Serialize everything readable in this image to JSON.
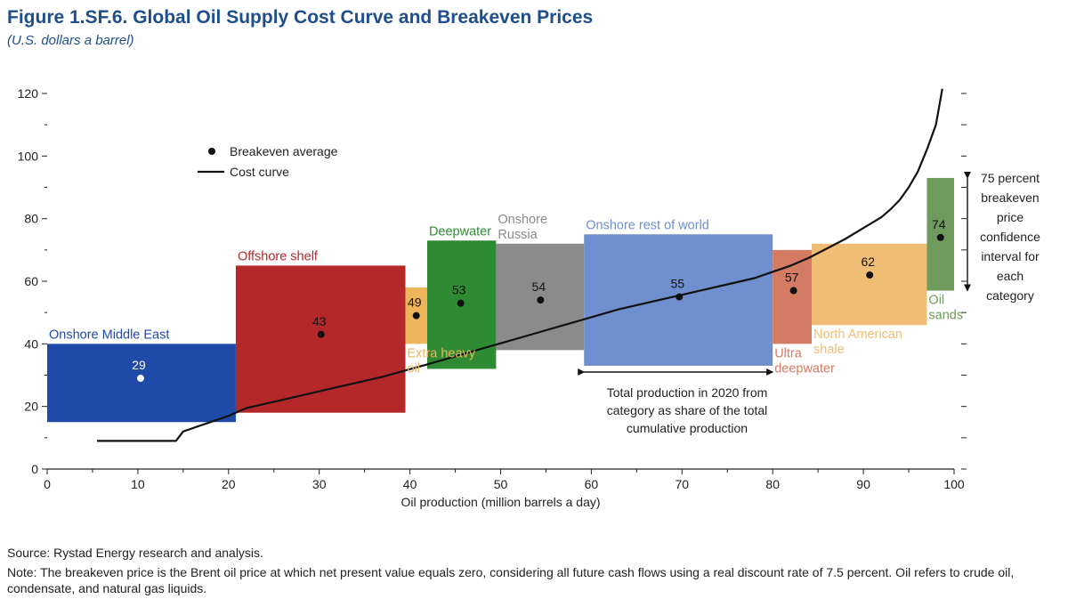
{
  "title": "Figure 1.SF.6.  Global Oil Supply Cost Curve and Breakeven Prices",
  "subtitle": "(U.S. dollars a barrel)",
  "source": "Source: Rystad Energy research and analysis.",
  "note": "Note: The breakeven price is the Brent oil price at which net present value equals zero, considering all future cash flows using a real discount rate of 7.5 percent. Oil refers to crude oil, condensate, and natural gas liquids.",
  "chart_data": {
    "type": "area",
    "title": "Global Oil Supply Cost Curve and Breakeven Prices",
    "xlabel": "Oil production (million barrels a day)",
    "ylabel": "U.S. dollars a barrel",
    "xlim": [
      0,
      100
    ],
    "ylim": [
      0,
      120
    ],
    "x_ticks": [
      "0",
      "10",
      "20",
      "30",
      "40",
      "50",
      "60",
      "70",
      "80",
      "90",
      "100"
    ],
    "y_ticks": [
      "0",
      "20",
      "40",
      "60",
      "80",
      "100",
      "120"
    ],
    "legend": {
      "position": "top-left",
      "items": [
        {
          "label": "Breakeven average",
          "marker": "dot"
        },
        {
          "label": "Cost curve",
          "marker": "line"
        }
      ]
    },
    "categories": [
      {
        "name": "Onshore Middle East",
        "label_lines": [
          "Onshore Middle East"
        ],
        "label_side": "above",
        "color": "#1f4aa8",
        "x0": 0,
        "x1": 20.8,
        "y_low": 15,
        "y_high": 40,
        "breakeven": 29,
        "breakeven_x": 10.3
      },
      {
        "name": "Offshore shelf",
        "label_lines": [
          "Offshore shelf"
        ],
        "label_side": "above",
        "color": "#b5282a",
        "x0": 20.8,
        "x1": 39.5,
        "y_low": 18,
        "y_high": 65,
        "breakeven": 43,
        "breakeven_x": 30.2
      },
      {
        "name": "Extra heavy oil",
        "label_lines": [
          "Extra heavy",
          "oil"
        ],
        "label_side": "below",
        "color": "#efb55a",
        "x0": 39.5,
        "x1": 41.9,
        "y_low": 40,
        "y_high": 58,
        "breakeven": 49,
        "breakeven_x": 40.7
      },
      {
        "name": "Deepwater",
        "label_lines": [
          "Deepwater"
        ],
        "label_side": "above",
        "color": "#2f8a34",
        "x0": 41.9,
        "x1": 49.5,
        "y_low": 32,
        "y_high": 73,
        "breakeven": 53,
        "breakeven_x": 45.6
      },
      {
        "name": "Onshore Russia",
        "label_lines": [
          "Onshore",
          "Russia"
        ],
        "label_side": "above",
        "color": "#8b8b8b",
        "x0": 49.5,
        "x1": 59.2,
        "y_low": 38,
        "y_high": 72,
        "breakeven": 54,
        "breakeven_x": 54.4
      },
      {
        "name": "Onshore rest of world",
        "label_lines": [
          "Onshore rest of world"
        ],
        "label_side": "above",
        "color": "#6f8fce",
        "x0": 59.2,
        "x1": 80.0,
        "y_low": 33,
        "y_high": 75,
        "breakeven": 55,
        "breakeven_x": 69.7
      },
      {
        "name": "Ultra deepwater",
        "label_lines": [
          "Ultra",
          "deepwater"
        ],
        "label_side": "below",
        "color": "#d47b64",
        "x0": 80.0,
        "x1": 84.3,
        "y_low": 40,
        "y_high": 70,
        "breakeven": 57,
        "breakeven_x": 82.3
      },
      {
        "name": "North American shale",
        "label_lines": [
          "North American",
          "shale"
        ],
        "label_side": "below",
        "color": "#efbd74",
        "x0": 84.3,
        "x1": 97.0,
        "y_low": 46,
        "y_high": 72,
        "breakeven": 62,
        "breakeven_x": 90.7
      },
      {
        "name": "Oil sands",
        "label_lines": [
          "Oil",
          "sands"
        ],
        "label_side": "below",
        "color": "#6f9a5e",
        "x0": 97.0,
        "x1": 100.0,
        "y_low": 57,
        "y_high": 93,
        "breakeven": 74,
        "breakeven_x": 98.5
      }
    ],
    "cost_curve": {
      "x": [
        5.5,
        14.2,
        15,
        16.5,
        18,
        20,
        22,
        25,
        28,
        31,
        34,
        37,
        39.5,
        42,
        45,
        48,
        51,
        54,
        57,
        60,
        63,
        66,
        69,
        72,
        75,
        78,
        80,
        82,
        84,
        86,
        88,
        90,
        92,
        93,
        94,
        95,
        96,
        97,
        98,
        98.7
      ],
      "y": [
        9,
        9,
        12,
        13.5,
        15,
        17,
        19.5,
        21.5,
        23.5,
        25.5,
        27.5,
        29.5,
        31.5,
        33.5,
        36,
        38.5,
        41,
        43.5,
        46,
        48.5,
        51,
        53,
        55,
        57,
        59,
        61,
        63,
        65,
        67.5,
        70.5,
        73.5,
        77,
        80.5,
        83,
        86,
        90,
        95,
        102,
        110,
        122
      ]
    },
    "annotations": {
      "confidence_interval": [
        "75 percent",
        "breakeven",
        "price",
        "confidence",
        "interval for",
        "each",
        "category"
      ],
      "total_production": [
        "Total production in 2020 from",
        "category as share of the total",
        "cumulative production"
      ],
      "total_production_span": [
        59.2,
        80.0
      ]
    }
  }
}
